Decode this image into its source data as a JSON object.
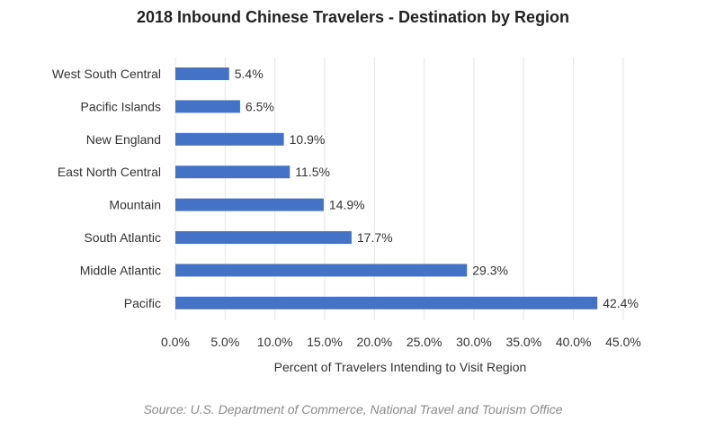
{
  "chart_data": {
    "type": "bar",
    "orientation": "horizontal",
    "title": "2018 Inbound Chinese Travelers - Destination  by Region",
    "xlabel": "Percent of Travelers Intending to Visit Region",
    "ylabel": "",
    "categories": [
      "West South Central",
      "Pacific Islands",
      "New England",
      "East North Central",
      "Mountain",
      "South Atlantic",
      "Middle Atlantic",
      "Pacific"
    ],
    "values": [
      5.4,
      6.5,
      10.9,
      11.5,
      14.9,
      17.7,
      29.3,
      42.4
    ],
    "data_labels": [
      "5.4%",
      "6.5%",
      "10.9%",
      "11.5%",
      "14.9%",
      "17.7%",
      "29.3%",
      "42.4%"
    ],
    "xlim": [
      0,
      45
    ],
    "x_ticks": [
      0,
      5,
      10,
      15,
      20,
      25,
      30,
      35,
      40,
      45
    ],
    "x_tick_labels": [
      "0.0%",
      "5.0%",
      "10.0%",
      "15.0%",
      "20.0%",
      "25.0%",
      "30.0%",
      "35.0%",
      "40.0%",
      "45.0%"
    ],
    "grid": "vertical",
    "legend": "none",
    "bar_color": "#4472c4",
    "grid_color": "#e6e6e6"
  },
  "source_note": "Source: U.S. Department of Commerce, National Travel and Tourism Office"
}
